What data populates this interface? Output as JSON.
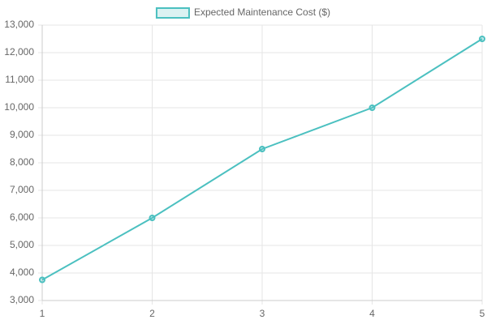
{
  "chart_data": {
    "type": "line",
    "x": [
      1,
      2,
      3,
      4,
      5
    ],
    "series": [
      {
        "name": "Expected Maintenance Cost ($)",
        "color": "#4bc0c0",
        "values": [
          3750,
          6000,
          8500,
          10000,
          12500
        ]
      }
    ],
    "xlim": [
      1,
      5
    ],
    "xticks": [
      1,
      2,
      3,
      4,
      5
    ],
    "ylim": [
      3000,
      13000
    ],
    "yticks": [
      {
        "value": 3000,
        "label": "3,000"
      },
      {
        "value": 4000,
        "label": "4,000"
      },
      {
        "value": 5000,
        "label": "5,000"
      },
      {
        "value": 6000,
        "label": "6,000"
      },
      {
        "value": 7000,
        "label": "7,000"
      },
      {
        "value": 8000,
        "label": "8,000"
      },
      {
        "value": 9000,
        "label": "9,000"
      },
      {
        "value": 10000,
        "label": "10,000"
      },
      {
        "value": 11000,
        "label": "11,000"
      },
      {
        "value": 12000,
        "label": "12,000"
      },
      {
        "value": 13000,
        "label": "13,000"
      }
    ],
    "grid": true,
    "legend": "top"
  }
}
